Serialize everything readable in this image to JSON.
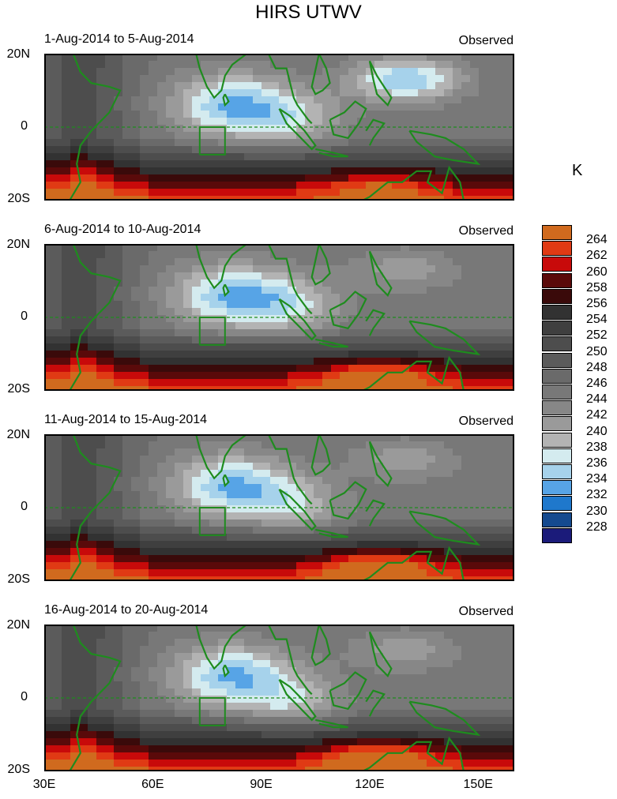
{
  "title": "HIRS UTWV",
  "unit": "K",
  "colors": {
    "land": "#1e8c1e",
    "ocean_bg": "#a9a9a9"
  },
  "chart_data": {
    "type": "contour-map",
    "variable": "Upper-troposphere water vapour brightness temperature",
    "x_ticks": [
      "30E",
      "60E",
      "90E",
      "120E",
      "150E"
    ],
    "x_range": [
      30,
      160
    ],
    "y_ticks": [
      "20N",
      "0",
      "20S"
    ],
    "y_range": [
      -20,
      20
    ],
    "levels": [
      228,
      230,
      232,
      234,
      236,
      238,
      240,
      242,
      244,
      246,
      248,
      250,
      252,
      254,
      256,
      258,
      260,
      262,
      264
    ],
    "level_labels": [
      "264",
      "262",
      "260",
      "258",
      "256",
      "254",
      "252",
      "250",
      "248",
      "246",
      "244",
      "242",
      "240",
      "238",
      "236",
      "234",
      "232",
      "230",
      "228"
    ],
    "panels": [
      {
        "period": "1-Aug-2014 to 5-Aug-2014",
        "label": "Observed"
      },
      {
        "period": "6-Aug-2014 to 10-Aug-2014",
        "label": "Observed"
      },
      {
        "period": "11-Aug-2014 to 15-Aug-2014",
        "label": "Observed"
      },
      {
        "period": "16-Aug-2014 to 20-Aug-2014",
        "label": "Observed"
      }
    ]
  }
}
